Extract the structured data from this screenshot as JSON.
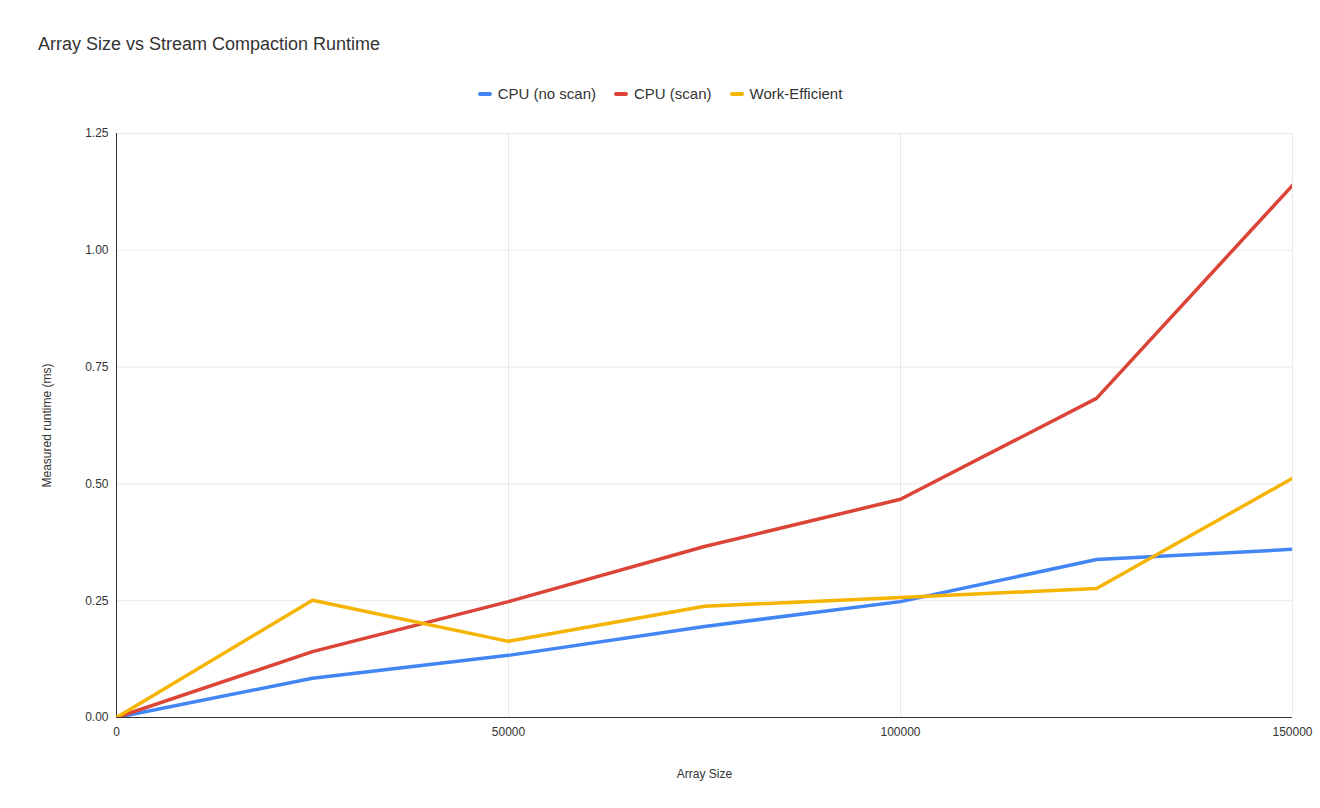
{
  "chart_data": {
    "type": "line",
    "title": "Array Size vs Stream Compaction Runtime",
    "x_label": "Array Size",
    "y_label": "Measured runtime (ms)",
    "x": [
      0,
      25000,
      50000,
      75000,
      100000,
      125000,
      150000
    ],
    "series": [
      {
        "name": "CPU (no scan)",
        "color": "#4285f4",
        "values": [
          0,
          0.084,
          0.133,
          0.195,
          0.248,
          0.338,
          0.36
        ]
      },
      {
        "name": "CPU (scan)",
        "color": "#db4437",
        "values": [
          0,
          0.141,
          0.248,
          0.366,
          0.467,
          0.683,
          1.139
        ]
      },
      {
        "name": "Work-Efficient",
        "color": "#f4b400",
        "values": [
          0,
          0.251,
          0.163,
          0.238,
          0.257,
          0.276,
          0.512
        ]
      }
    ],
    "xlim": [
      0,
      150000
    ],
    "xticks": [
      0,
      50000,
      100000,
      150000
    ],
    "ylim": [
      0,
      1.25
    ],
    "yticks": [
      {
        "value": 0,
        "label": "0.00"
      },
      0.25,
      {
        "value": 0.5,
        "label": "0.50"
      },
      0.75,
      {
        "value": 1,
        "label": "1.00"
      },
      1.25
    ],
    "grid": true,
    "legend": "top"
  }
}
